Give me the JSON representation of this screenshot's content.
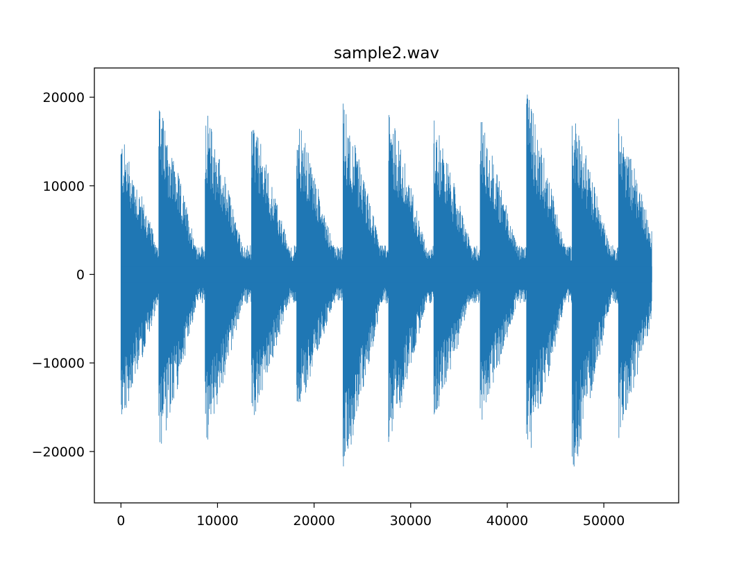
{
  "chart_data": {
    "type": "line",
    "title": "sample2.wav",
    "xlabel": "",
    "ylabel": "",
    "xlim": [
      -2750,
      57750
    ],
    "ylim": [
      -25800,
      23300
    ],
    "x_ticks": [
      0,
      10000,
      20000,
      30000,
      40000,
      50000
    ],
    "x_tick_labels": [
      "0",
      "10000",
      "20000",
      "30000",
      "40000",
      "50000"
    ],
    "y_ticks": [
      20000,
      10000,
      0,
      -10000,
      -20000
    ],
    "y_tick_labels": [
      "20000",
      "10000",
      "0",
      "−10000",
      "−20000"
    ],
    "grid": false,
    "legend": "none",
    "line_color": "#1f77b4",
    "sample_count": 55000,
    "burst_period_samples": 4750,
    "bursts": [
      {
        "onset": 0,
        "peak_pos": 16000,
        "peak_neg": -17400
      },
      {
        "onset": 3900,
        "peak_pos": 19600,
        "peak_neg": -21600
      },
      {
        "onset": 8700,
        "peak_pos": 19300,
        "peak_neg": -20200
      },
      {
        "onset": 13500,
        "peak_pos": 18400,
        "peak_neg": -17800
      },
      {
        "onset": 18200,
        "peak_pos": 18200,
        "peak_neg": -16400
      },
      {
        "onset": 23000,
        "peak_pos": 19700,
        "peak_neg": -23300
      },
      {
        "onset": 27700,
        "peak_pos": 19400,
        "peak_neg": -20100
      },
      {
        "onset": 32400,
        "peak_pos": 18000,
        "peak_neg": -16700
      },
      {
        "onset": 37200,
        "peak_pos": 18100,
        "peak_neg": -17600
      },
      {
        "onset": 42000,
        "peak_pos": 21100,
        "peak_neg": -21800
      },
      {
        "onset": 46700,
        "peak_pos": 19300,
        "peak_neg": -23500
      },
      {
        "onset": 51500,
        "peak_pos": 18200,
        "peak_neg": -19000
      }
    ]
  }
}
